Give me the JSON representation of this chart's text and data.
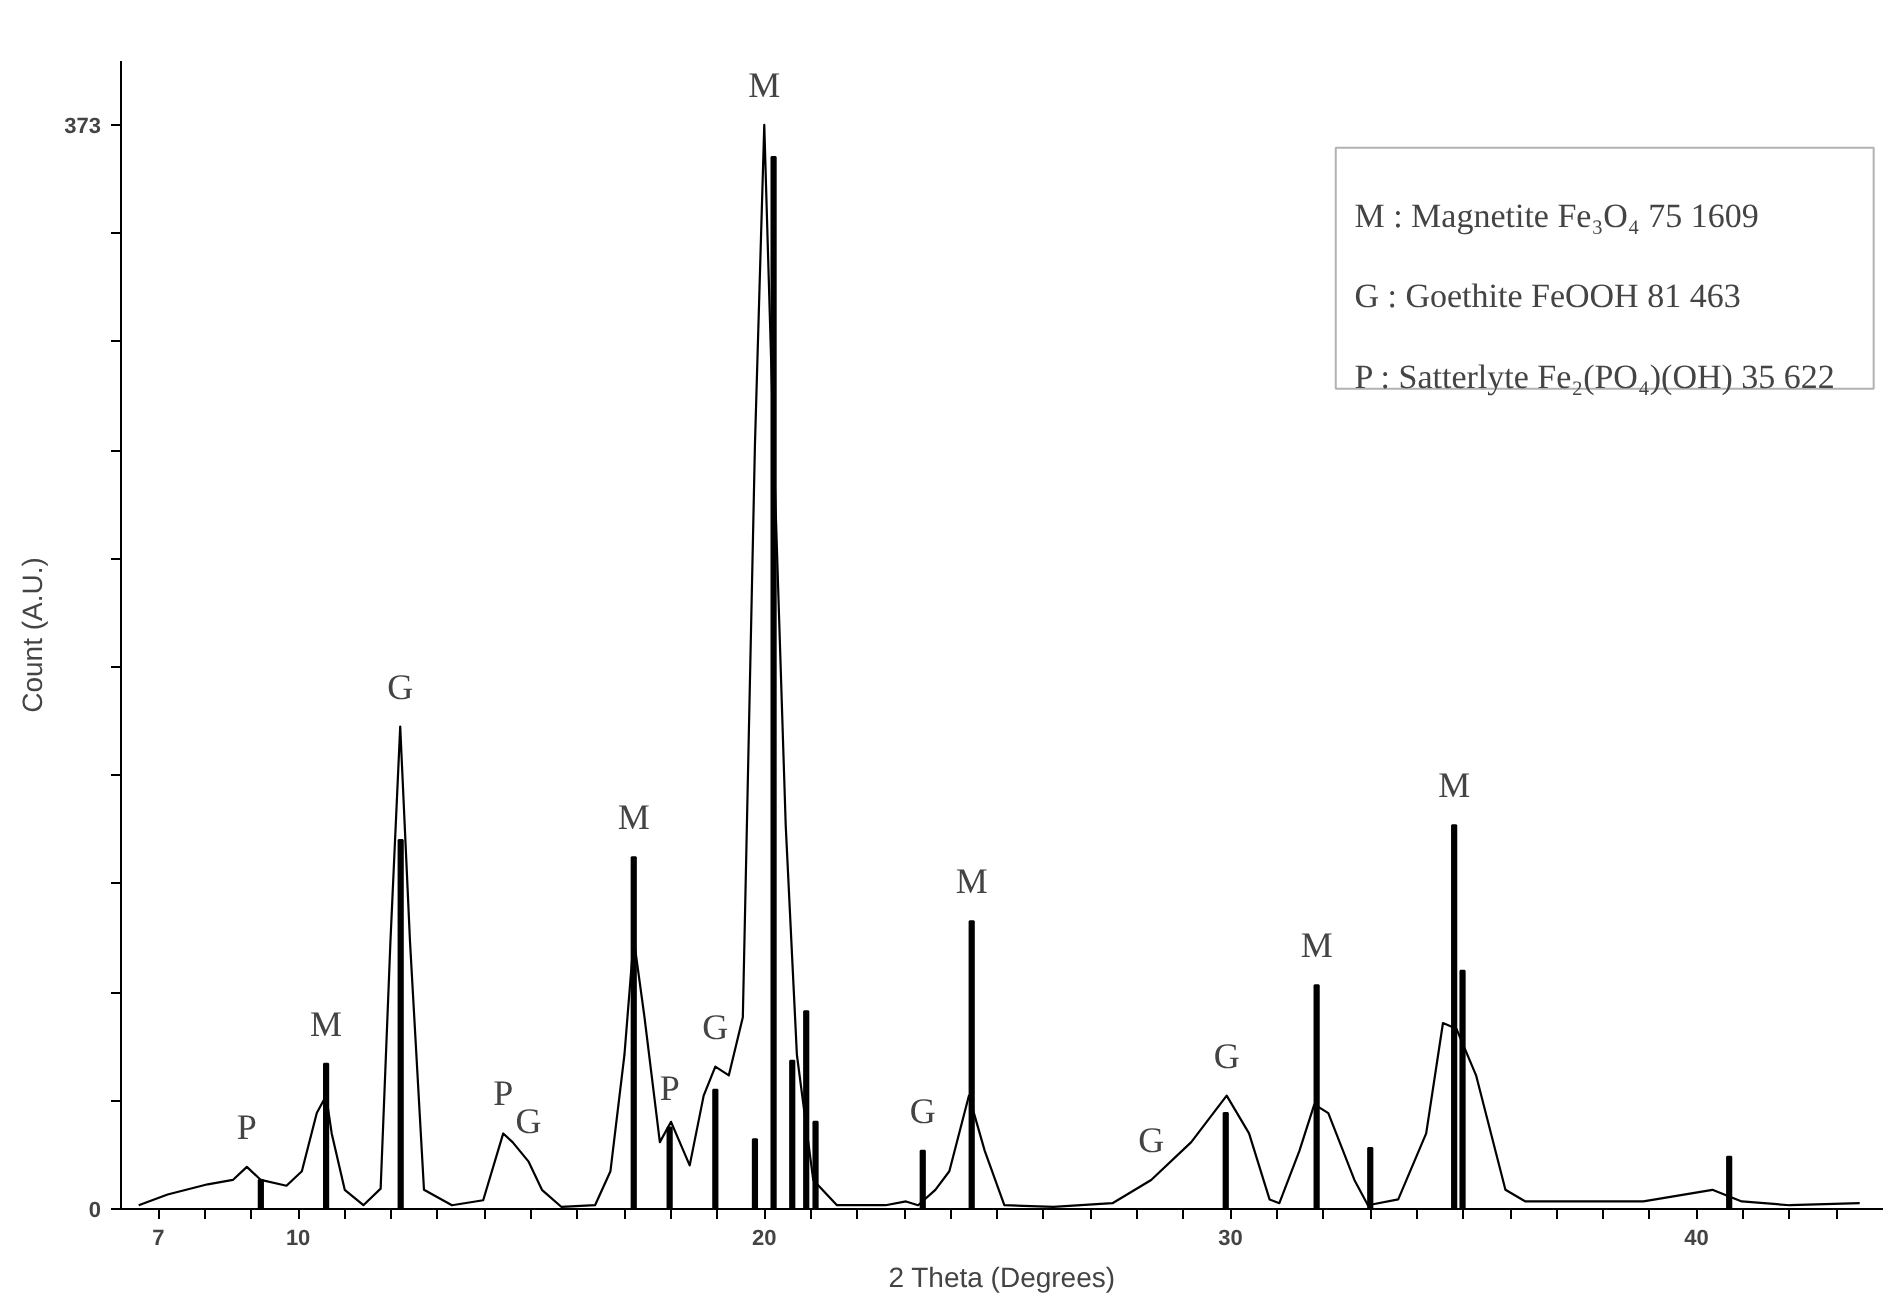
{
  "chart_data": {
    "type": "line",
    "xlabel": "2 Theta (Degrees)",
    "ylabel": "Count (A.U.)",
    "xlim": [
      6.2,
      44
    ],
    "ylim": [
      0,
      395
    ],
    "xticks": [
      {
        "value": 7,
        "label": "7"
      },
      {
        "value": 8,
        "label": null
      },
      {
        "value": 9,
        "label": null
      },
      {
        "value": 10,
        "label": "10"
      },
      {
        "value": 11,
        "label": null
      },
      {
        "value": 12,
        "label": null
      },
      {
        "value": 13,
        "label": null
      },
      {
        "value": 14,
        "label": null
      },
      {
        "value": 15,
        "label": null
      },
      {
        "value": 16,
        "label": null
      },
      {
        "value": 17,
        "label": null
      },
      {
        "value": 18,
        "label": null
      },
      {
        "value": 19,
        "label": null
      },
      {
        "value": 20,
        "label": "20"
      },
      {
        "value": 21,
        "label": null
      },
      {
        "value": 22,
        "label": null
      },
      {
        "value": 23,
        "label": null
      },
      {
        "value": 24,
        "label": null
      },
      {
        "value": 25,
        "label": null
      },
      {
        "value": 26,
        "label": null
      },
      {
        "value": 27,
        "label": null
      },
      {
        "value": 28,
        "label": null
      },
      {
        "value": 29,
        "label": null
      },
      {
        "value": 30,
        "label": "30"
      },
      {
        "value": 31,
        "label": null
      },
      {
        "value": 32,
        "label": null
      },
      {
        "value": 33,
        "label": null
      },
      {
        "value": 34,
        "label": null
      },
      {
        "value": 35,
        "label": null
      },
      {
        "value": 36,
        "label": null
      },
      {
        "value": 37,
        "label": null
      },
      {
        "value": 38,
        "label": null
      },
      {
        "value": 39,
        "label": null
      },
      {
        "value": 40,
        "label": "40"
      },
      {
        "value": 41,
        "label": null
      },
      {
        "value": 42,
        "label": null
      },
      {
        "value": 43,
        "label": null
      }
    ],
    "yticks": [
      0,
      {
        "value": 37.3,
        "label": null
      },
      {
        "value": 74.6,
        "label": null
      },
      {
        "value": 111.9,
        "label": null
      },
      {
        "value": 149.2,
        "label": null
      },
      {
        "value": 186.5,
        "label": null
      },
      {
        "value": 223.8,
        "label": null
      },
      {
        "value": 261.1,
        "label": null
      },
      {
        "value": 298.4,
        "label": null
      },
      {
        "value": 335.7,
        "label": null
      },
      373
    ],
    "grid": false,
    "series": [
      {
        "color": "#000000",
        "x": [
          6.58,
          7.2,
          8.06,
          8.6,
          8.9,
          9.2,
          9.75,
          10.08,
          10.4,
          10.6,
          10.72,
          11.0,
          11.4,
          11.77,
          11.98,
          12.19,
          12.4,
          12.7,
          13.3,
          13.97,
          14.4,
          14.6,
          14.94,
          15.23,
          15.65,
          16.37,
          16.7,
          17.0,
          17.2,
          17.43,
          17.76,
          18.0,
          18.4,
          18.7,
          18.95,
          19.24,
          19.54,
          19.8,
          20.0,
          20.2,
          20.46,
          20.7,
          21.05,
          21.56,
          22.6,
          23.04,
          23.3,
          23.67,
          23.97,
          24.39,
          24.73,
          25.15,
          26.2,
          27.47,
          28.3,
          29.16,
          29.92,
          30.4,
          30.84,
          31.05,
          31.48,
          31.8,
          32.1,
          32.66,
          32.95,
          33.6,
          34.2,
          34.56,
          34.85,
          35.27,
          35.9,
          36.33,
          38.86,
          40.34,
          40.97,
          42.0,
          43.5
        ],
        "values": [
          1.3,
          5,
          8.5,
          10,
          14.5,
          10,
          8,
          13,
          33,
          39,
          26,
          6.6,
          1.3,
          7,
          92,
          166,
          92,
          6.6,
          1.3,
          3,
          26,
          23,
          16.4,
          6.6,
          0.7,
          1.3,
          13,
          53,
          93,
          66,
          23,
          30,
          15,
          39,
          49,
          46,
          66,
          263,
          373,
          263,
          132,
          53,
          10,
          1.3,
          1.3,
          2.6,
          1.3,
          6.6,
          13,
          39,
          20,
          1.3,
          0.7,
          2,
          10,
          23,
          39,
          26,
          3.3,
          2,
          20,
          36,
          33,
          10,
          1.3,
          3.3,
          26,
          64,
          62,
          46,
          6.6,
          2.6,
          2.6,
          6.6,
          2.6,
          1.3,
          2
        ]
      },
      {
        "type": "bar",
        "color": "#000000",
        "x": [
          9.2,
          10.6,
          12.2,
          17.2,
          17.97,
          18.95,
          19.8,
          20.2,
          20.6,
          20.9,
          21.1,
          23.4,
          24.45,
          29.9,
          31.85,
          33.0,
          34.8,
          34.98,
          40.7
        ],
        "values": [
          10,
          50,
          127,
          121,
          28,
          41,
          24,
          362,
          51,
          68,
          30,
          20,
          99,
          33,
          77,
          21,
          132,
          82,
          18
        ]
      }
    ],
    "annotations": [
      {
        "text": "P",
        "x": 8.9,
        "y": 14.5
      },
      {
        "text": "M",
        "x": 10.6,
        "y": 50
      },
      {
        "text": "G",
        "x": 12.19,
        "y": 166
      },
      {
        "text": "P",
        "x": 14.4,
        "y": 26
      },
      {
        "text": "G",
        "x": 14.94,
        "y": 16.4
      },
      {
        "text": "M",
        "x": 17.2,
        "y": 121
      },
      {
        "text": "P",
        "x": 17.97,
        "y": 28
      },
      {
        "text": "G",
        "x": 18.95,
        "y": 49
      },
      {
        "text": "M",
        "x": 20.0,
        "y": 373
      },
      {
        "text": "G",
        "x": 23.4,
        "y": 20
      },
      {
        "text": "M",
        "x": 24.45,
        "y": 99
      },
      {
        "text": "G",
        "x": 28.3,
        "y": 10
      },
      {
        "text": "G",
        "x": 29.92,
        "y": 39
      },
      {
        "text": "M",
        "x": 31.85,
        "y": 77
      },
      {
        "text": "M",
        "x": 34.8,
        "y": 132
      },
      "M : Magnetite Fe₃O₄ 75 1609",
      "G : Goethite FeOOH 81 463",
      "P : Satterlyte Fe₂(PO₄)(OH) 35 622"
    ]
  }
}
